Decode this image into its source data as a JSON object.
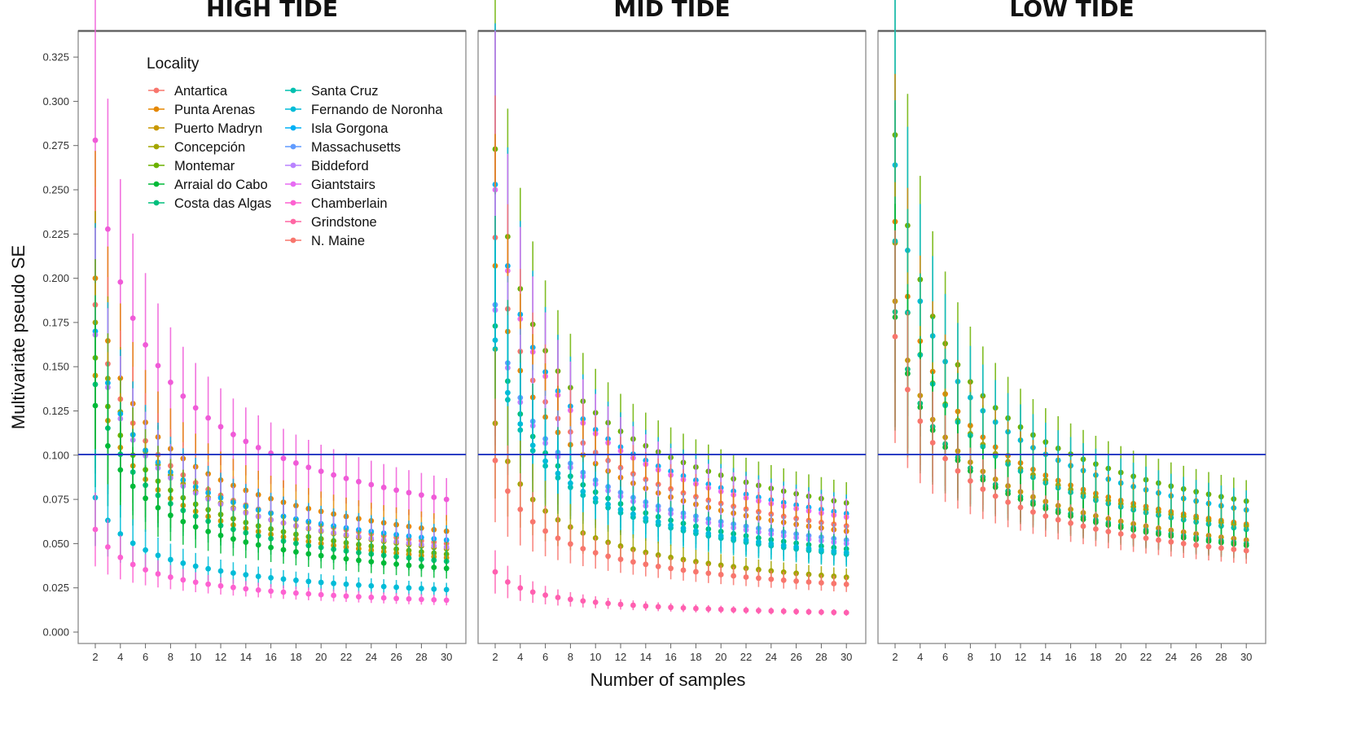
{
  "chart_data": {
    "type": "scatter",
    "ylabel": "Multivariate pseudo SE",
    "xlabel": "Number of samples",
    "ylim": [
      0,
      0.325
    ],
    "yticks": [
      "0.000",
      "0.025",
      "0.050",
      "0.075",
      "0.100",
      "0.125",
      "0.150",
      "0.175",
      "0.200",
      "0.225",
      "0.250",
      "0.275",
      "0.300",
      "0.325"
    ],
    "xlim": [
      2,
      30
    ],
    "xticks": [
      "2",
      "4",
      "6",
      "8",
      "10",
      "12",
      "14",
      "16",
      "18",
      "20",
      "22",
      "24",
      "26",
      "28",
      "30"
    ],
    "reference_line": {
      "y": 0.1,
      "color": "#2c3fc4"
    },
    "legend": {
      "title": "Locality",
      "placement": "top-left (inside first panel)",
      "entries": [
        {
          "name": "Antartica",
          "color": "#f8766d"
        },
        {
          "name": "Punta Arenas",
          "color": "#e58700"
        },
        {
          "name": "Puerto Madryn",
          "color": "#c99800"
        },
        {
          "name": "Concepción",
          "color": "#a3a500"
        },
        {
          "name": "Montemar",
          "color": "#6bb100"
        },
        {
          "name": "Arraial do Cabo",
          "color": "#00ba38"
        },
        {
          "name": "Costa das Algas",
          "color": "#00bf7d"
        },
        {
          "name": "Santa Cruz",
          "color": "#00c0af"
        },
        {
          "name": "Fernando de Noronha",
          "color": "#00bcd8"
        },
        {
          "name": "Isla Gorgona",
          "color": "#00b0f6"
        },
        {
          "name": "Massachusetts",
          "color": "#619cff"
        },
        {
          "name": "Biddeford",
          "color": "#b983ff"
        },
        {
          "name": "Giantstairs",
          "color": "#e76bf3"
        },
        {
          "name": "Chamberlain",
          "color": "#fd61d1"
        },
        {
          "name": "Grindstone",
          "color": "#ff67a4"
        },
        {
          "name": "N. Maine",
          "color": "#f8766d"
        }
      ]
    },
    "panels": [
      {
        "title": "HIGH TIDE",
        "series": [
          {
            "name": "Grindstone",
            "color": "#f05bd8",
            "se_at_2": 0.278,
            "se_at_30": 0.075
          },
          {
            "name": "Punta Arenas",
            "color": "#e58700",
            "se_at_2": 0.2,
            "se_at_30": 0.057
          },
          {
            "name": "Antartica",
            "color": "#f8766d",
            "se_at_2": 0.185,
            "se_at_30": 0.05
          },
          {
            "name": "Concepción",
            "color": "#a3a500",
            "se_at_2": 0.175,
            "se_at_30": 0.047
          },
          {
            "name": "Isla Gorgona",
            "color": "#00b0f6",
            "se_at_2": 0.17,
            "se_at_30": 0.052
          },
          {
            "name": "Biddeford",
            "color": "#b983ff",
            "se_at_2": 0.168,
            "se_at_30": 0.048
          },
          {
            "name": "Montemar",
            "color": "#6bb100",
            "se_at_2": 0.155,
            "se_at_30": 0.044
          },
          {
            "name": "Puerto Madryn",
            "color": "#c99800",
            "se_at_2": 0.145,
            "se_at_30": 0.042
          },
          {
            "name": "Costa das Algas",
            "color": "#00bf7d",
            "se_at_2": 0.14,
            "se_at_30": 0.04
          },
          {
            "name": "Arraial do Cabo",
            "color": "#00ba38",
            "se_at_2": 0.128,
            "se_at_30": 0.036
          },
          {
            "name": "Fernando de Noronha",
            "color": "#00bcd8",
            "se_at_2": 0.076,
            "se_at_30": 0.024
          },
          {
            "name": "Chamberlain",
            "color": "#fd61d1",
            "se_at_2": 0.058,
            "se_at_30": 0.018
          }
        ]
      },
      {
        "title": "MID TIDE",
        "series": [
          {
            "name": "Montemar",
            "color": "#6bb100",
            "se_at_2": 0.273,
            "se_at_30": 0.073
          },
          {
            "name": "Isla Gorgona",
            "color": "#00b0f6",
            "se_at_2": 0.253,
            "se_at_30": 0.067
          },
          {
            "name": "Giantstairs",
            "color": "#e76bf3",
            "se_at_2": 0.25,
            "se_at_30": 0.065
          },
          {
            "name": "Antartica",
            "color": "#f8766d",
            "se_at_2": 0.223,
            "se_at_30": 0.06
          },
          {
            "name": "Punta Arenas",
            "color": "#e58700",
            "se_at_2": 0.207,
            "se_at_30": 0.057
          },
          {
            "name": "Massachusetts",
            "color": "#619cff",
            "se_at_2": 0.185,
            "se_at_30": 0.052
          },
          {
            "name": "Biddeford",
            "color": "#b983ff",
            "se_at_2": 0.182,
            "se_at_30": 0.05
          },
          {
            "name": "Costa das Algas",
            "color": "#00bf7d",
            "se_at_2": 0.173,
            "se_at_30": 0.047
          },
          {
            "name": "Santa Cruz",
            "color": "#00c0af",
            "se_at_2": 0.16,
            "se_at_30": 0.044
          },
          {
            "name": "Fernando de Noronha",
            "color": "#00bcd8",
            "se_at_2": 0.165,
            "se_at_30": 0.045
          },
          {
            "name": "Concepción",
            "color": "#a3a500",
            "se_at_2": 0.118,
            "se_at_30": 0.031
          },
          {
            "name": "N. Maine",
            "color": "#f8766d",
            "se_at_2": 0.097,
            "se_at_30": 0.027
          },
          {
            "name": "Grindstone",
            "color": "#ff5fb0",
            "se_at_2": 0.034,
            "se_at_30": 0.011
          }
        ]
      },
      {
        "title": "LOW TIDE",
        "series": [
          {
            "name": "Montemar",
            "color": "#6bb100",
            "se_at_2": 0.281,
            "se_at_30": 0.074
          },
          {
            "name": "Fernando de Noronha",
            "color": "#00bcd8",
            "se_at_2": 0.264,
            "se_at_30": 0.069
          },
          {
            "name": "Punta Arenas",
            "color": "#e58700",
            "se_at_2": 0.232,
            "se_at_30": 0.061
          },
          {
            "name": "Concepción",
            "color": "#a3a500",
            "se_at_2": 0.22,
            "se_at_30": 0.06
          },
          {
            "name": "Santa Cruz",
            "color": "#00c0af",
            "se_at_2": 0.221,
            "se_at_30": 0.058
          },
          {
            "name": "Puerto Madryn",
            "color": "#c99800",
            "se_at_2": 0.187,
            "se_at_30": 0.052
          },
          {
            "name": "Costa das Algas",
            "color": "#00bf7d",
            "se_at_2": 0.181,
            "se_at_30": 0.05
          },
          {
            "name": "Arraial do Cabo",
            "color": "#00ba38",
            "se_at_2": 0.178,
            "se_at_30": 0.049
          },
          {
            "name": "Antartica",
            "color": "#f8766d",
            "se_at_2": 0.167,
            "se_at_30": 0.046
          }
        ]
      }
    ]
  }
}
